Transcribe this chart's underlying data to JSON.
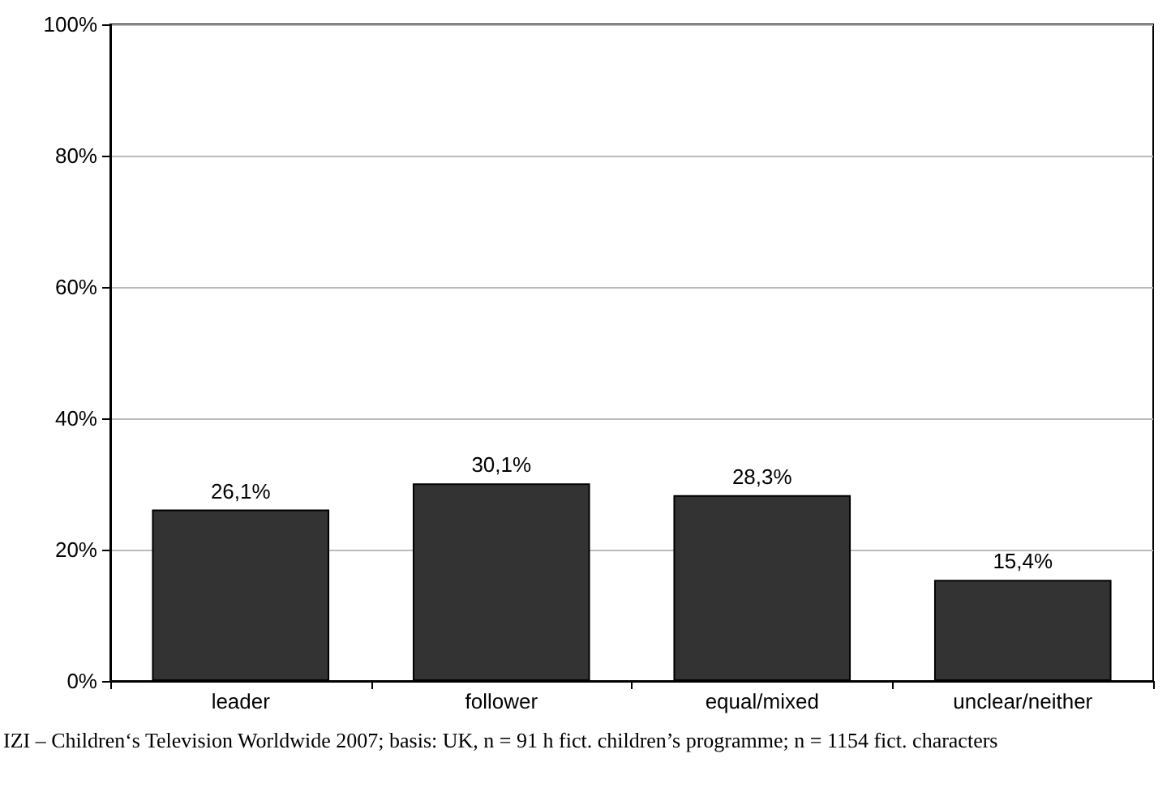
{
  "chart_data": {
    "type": "bar",
    "categories": [
      "leader",
      "follower",
      "equal/mixed",
      "unclear/neither"
    ],
    "values": [
      26.1,
      30.1,
      28.3,
      15.4
    ],
    "color": "#333333",
    "value_labels": [
      "26,1%",
      "30,1%",
      "28,3%",
      "15,4%"
    ],
    "ylim": [
      0,
      100
    ],
    "yticks": [
      {
        "value": 0,
        "label": "0%"
      },
      {
        "value": 20,
        "label": "20%"
      },
      {
        "value": 40,
        "label": "40%"
      },
      {
        "value": 60,
        "label": "60%"
      },
      {
        "value": 80,
        "label": "80%"
      },
      {
        "value": 100,
        "label": "100%"
      }
    ],
    "grid": "y",
    "annotations": [
      "IZI – Children‘s Television Worldwide 2007; basis: UK, n = 91 h fict. children’s programme; n = 1154 fict. characters"
    ]
  }
}
